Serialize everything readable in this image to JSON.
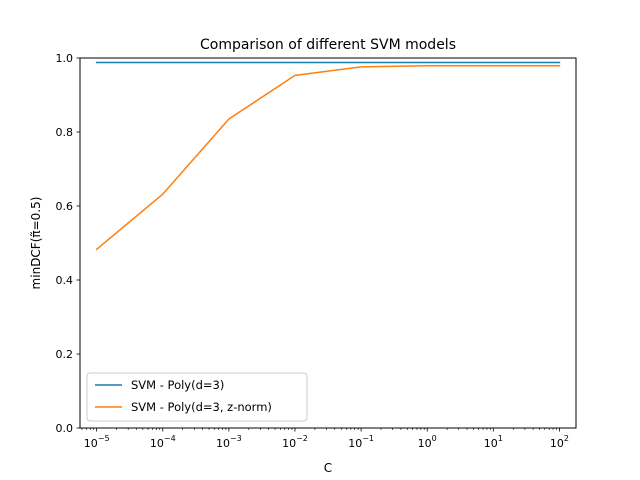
{
  "chart_data": {
    "type": "line",
    "title": "Comparison of different SVM models",
    "xlabel": "C",
    "ylabel": "minDCF(π̃=0.5)",
    "xscale": "log",
    "xlim": [
      5.6e-06,
      178
    ],
    "ylim": [
      0,
      1.0
    ],
    "x": [
      1e-05,
      0.0001,
      0.001,
      0.01,
      0.1,
      1,
      10,
      100
    ],
    "xticks": [
      {
        "value": 1e-05,
        "base": "10",
        "exp": "−5"
      },
      {
        "value": 0.0001,
        "base": "10",
        "exp": "−4"
      },
      {
        "value": 0.001,
        "base": "10",
        "exp": "−3"
      },
      {
        "value": 0.01,
        "base": "10",
        "exp": "−2"
      },
      {
        "value": 0.1,
        "base": "10",
        "exp": "−1"
      },
      {
        "value": 1,
        "base": "10",
        "exp": "0"
      },
      {
        "value": 10,
        "base": "10",
        "exp": "1"
      },
      {
        "value": 100,
        "base": "10",
        "exp": "2"
      }
    ],
    "yticks": [
      {
        "value": 0.0,
        "label": "0.0"
      },
      {
        "value": 0.2,
        "label": "0.2"
      },
      {
        "value": 0.4,
        "label": "0.4"
      },
      {
        "value": 0.6,
        "label": "0.6"
      },
      {
        "value": 0.8,
        "label": "0.8"
      },
      {
        "value": 1.0,
        "label": "1.0"
      }
    ],
    "grid": false,
    "legend_position": "lower-left",
    "series": [
      {
        "name": "SVM - Poly(d=3)",
        "color": "#1f77b4",
        "values": [
          0.988,
          0.988,
          0.988,
          0.988,
          0.988,
          0.988,
          0.988,
          0.988
        ]
      },
      {
        "name": "SVM - Poly(d=3, z-norm)",
        "color": "#ff7f0e",
        "values": [
          0.483,
          0.632,
          0.835,
          0.953,
          0.976,
          0.979,
          0.979,
          0.979
        ]
      }
    ]
  }
}
